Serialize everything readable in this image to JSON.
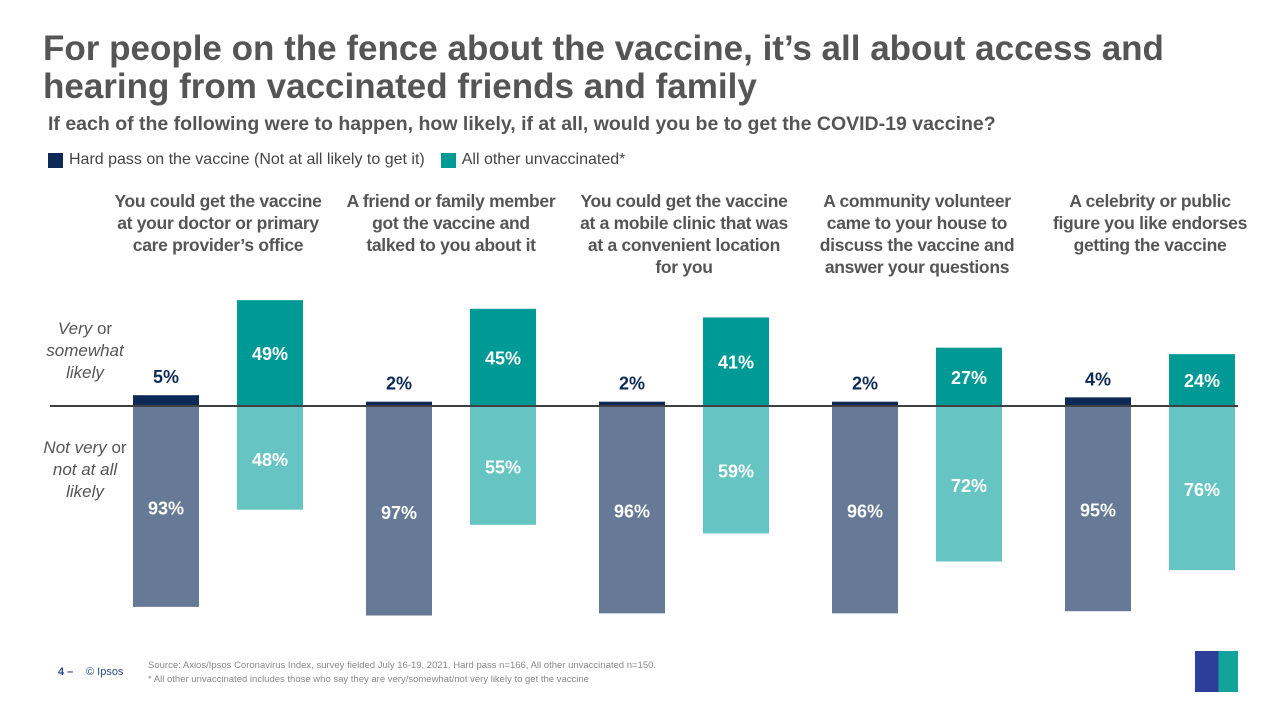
{
  "title": "For people on the fence about the vaccine, it’s all about access and hearing from vaccinated friends and family",
  "subtitle": "If each of the following were to happen, how likely, if at all, would you be to get the COVID-19 vaccine?",
  "axis_labels": {
    "positive": {
      "italic": "Very",
      "rest": " or",
      "line2": "somewhat",
      "line3": "likely"
    },
    "negative": {
      "italic": "Not very",
      "rest": " or",
      "line2": "not at all",
      "line3": "likely"
    }
  },
  "footer": {
    "page": "4 –",
    "copyright": "© Ipsos",
    "source": "Source: Axios/Ipsos Coronavirus Index, survey fielded July 16-19, 2021. Hard pass n=166, All other unvaccinated n=150.",
    "note": "* All other unvaccinated includes those who say they are very/somewhat/not very likely to get the vaccine",
    "logo_text": "Ipsos"
  },
  "chart_data": {
    "type": "bar",
    "title": "For people on the fence about the vaccine, it’s all about access and hearing from vaccinated friends and family",
    "subtitle": "If each of the following were to happen, how likely, if at all, would you be to get the COVID-19 vaccine?",
    "legend_placement": "top-left",
    "grid": false,
    "categories": [
      "You could get the vaccine at your doctor or primary care provider’s office",
      "A friend or family member got the vaccine and talked to you about it",
      "You could get the vaccine at a mobile clinic that was at a convenient location for you",
      "A community volunteer came to your house to discuss the vaccine and answer your questions",
      "A celebrity or public figure you like endorses getting the vaccine"
    ],
    "series": [
      {
        "name": "Hard pass on the vaccine (Not at all likely to get it)",
        "color_pos": "#0d2a57",
        "color_neg": "#667a97",
        "likely": [
          5,
          2,
          2,
          2,
          4
        ],
        "not_likely": [
          93,
          97,
          96,
          96,
          95
        ]
      },
      {
        "name": "All other unvaccinated*",
        "color_pos": "#009a96",
        "color_neg": "#66c4c2",
        "likely": [
          49,
          45,
          41,
          27,
          24
        ],
        "not_likely": [
          48,
          55,
          59,
          72,
          76
        ]
      }
    ]
  }
}
